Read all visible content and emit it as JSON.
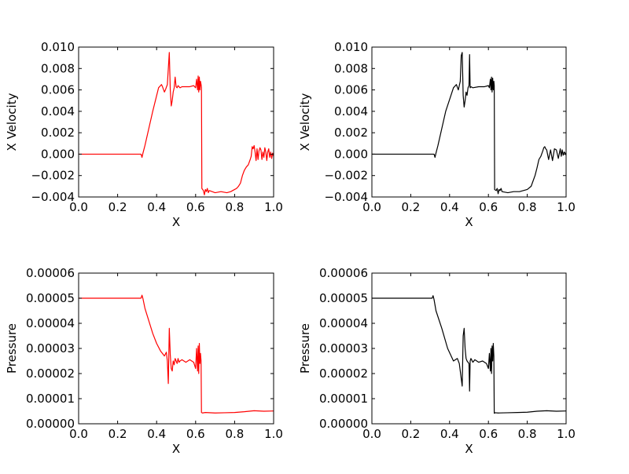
{
  "figure": {
    "panels": [
      {
        "id": "vel_red",
        "color": "#ff0000",
        "xlabel": "X",
        "ylabel": "X Velocity"
      },
      {
        "id": "vel_black",
        "color": "#000000",
        "xlabel": "X",
        "ylabel": "X Velocity"
      },
      {
        "id": "pres_red",
        "color": "#ff0000",
        "xlabel": "X",
        "ylabel": "Pressure"
      },
      {
        "id": "pres_black",
        "color": "#000000",
        "xlabel": "X",
        "ylabel": "Pressure"
      }
    ]
  },
  "chart_data": [
    {
      "type": "line",
      "title": "",
      "xlabel": "X",
      "ylabel": "X Velocity",
      "xlim": [
        0.0,
        1.0
      ],
      "ylim": [
        -0.004,
        0.01
      ],
      "xticks": [
        "0.0",
        "0.2",
        "0.4",
        "0.6",
        "0.8",
        "1.0"
      ],
      "yticks": [
        "−0.004",
        "−0.002",
        "0.000",
        "0.002",
        "0.004",
        "0.006",
        "0.008",
        "0.010"
      ],
      "grid": false,
      "series": [
        {
          "color": "#ff0000",
          "x": [
            0.0,
            0.32,
            0.325,
            0.33,
            0.34,
            0.38,
            0.41,
            0.425,
            0.43,
            0.44,
            0.445,
            0.455,
            0.465,
            0.47,
            0.475,
            0.48,
            0.485,
            0.49,
            0.495,
            0.5,
            0.505,
            0.51,
            0.515,
            0.52,
            0.53,
            0.55,
            0.57,
            0.59,
            0.6,
            0.605,
            0.61,
            0.613,
            0.616,
            0.619,
            0.622,
            0.625,
            0.628,
            0.63,
            0.632,
            0.64,
            0.645,
            0.65,
            0.655,
            0.66,
            0.665,
            0.67,
            0.7,
            0.73,
            0.76,
            0.78,
            0.79,
            0.8,
            0.81,
            0.82,
            0.83,
            0.84,
            0.85,
            0.86,
            0.87,
            0.88,
            0.885,
            0.89,
            0.895,
            0.9,
            0.905,
            0.91,
            0.915,
            0.92,
            0.925,
            0.93,
            0.935,
            0.94,
            0.945,
            0.95,
            0.955,
            0.96,
            0.965,
            0.97,
            0.975,
            0.98,
            0.985,
            0.99,
            0.995,
            1.0
          ],
          "y": [
            0.0,
            0.0,
            -0.0003,
            0.0001,
            0.0008,
            0.004,
            0.0062,
            0.0065,
            0.0063,
            0.0058,
            0.006,
            0.0065,
            0.0095,
            0.006,
            0.0045,
            0.005,
            0.0058,
            0.0062,
            0.0072,
            0.0063,
            0.0062,
            0.0064,
            0.0063,
            0.0062,
            0.0063,
            0.0063,
            0.0063,
            0.0064,
            0.0062,
            0.007,
            0.006,
            0.0073,
            0.0058,
            0.0072,
            0.006,
            0.0068,
            0.0065,
            0.0062,
            -0.0032,
            -0.0034,
            -0.0038,
            -0.0033,
            -0.0035,
            -0.0032,
            -0.0036,
            -0.0034,
            -0.0036,
            -0.0035,
            -0.0036,
            -0.0035,
            -0.0034,
            -0.0033,
            -0.0032,
            -0.003,
            -0.0027,
            -0.002,
            -0.0015,
            -0.0012,
            -0.001,
            -0.0005,
            -0.0002,
            0.0007,
            0.0005,
            0.0008,
            0.0002,
            -0.0006,
            0.0005,
            -0.0005,
            0.0003,
            0.0006,
            0.0004,
            -0.0005,
            0.0002,
            -0.0003,
            0.0006,
            0.0002,
            -0.0006,
            0.0002,
            0.0005,
            -0.0003,
            0.0002,
            -0.0004,
            0.0001,
            -0.0002
          ]
        }
      ]
    },
    {
      "type": "line",
      "title": "",
      "xlabel": "X",
      "ylabel": "X Velocity",
      "xlim": [
        0.0,
        1.0
      ],
      "ylim": [
        -0.004,
        0.01
      ],
      "xticks": [
        "0.0",
        "0.2",
        "0.4",
        "0.6",
        "0.8",
        "1.0"
      ],
      "yticks": [
        "−0.004",
        "−0.002",
        "0.000",
        "0.002",
        "0.004",
        "0.006",
        "0.008",
        "0.010"
      ],
      "grid": false,
      "series": [
        {
          "color": "#000000",
          "x": [
            0.0,
            0.32,
            0.325,
            0.33,
            0.34,
            0.38,
            0.42,
            0.435,
            0.445,
            0.455,
            0.46,
            0.465,
            0.47,
            0.475,
            0.48,
            0.485,
            0.49,
            0.495,
            0.5,
            0.503,
            0.506,
            0.51,
            0.52,
            0.55,
            0.58,
            0.6,
            0.605,
            0.61,
            0.613,
            0.616,
            0.619,
            0.622,
            0.625,
            0.628,
            0.63,
            0.632,
            0.64,
            0.645,
            0.65,
            0.655,
            0.66,
            0.665,
            0.67,
            0.7,
            0.73,
            0.76,
            0.78,
            0.8,
            0.82,
            0.84,
            0.85,
            0.86,
            0.87,
            0.88,
            0.885,
            0.89,
            0.895,
            0.9,
            0.91,
            0.92,
            0.93,
            0.94,
            0.95,
            0.96,
            0.97,
            0.975,
            0.98,
            0.985,
            0.99,
            0.995,
            1.0
          ],
          "y": [
            0.0,
            0.0,
            -0.0003,
            0.0001,
            0.0008,
            0.004,
            0.0062,
            0.0065,
            0.006,
            0.0068,
            0.0092,
            0.0095,
            0.0055,
            0.0044,
            0.005,
            0.0058,
            0.0055,
            0.0062,
            0.0064,
            0.0093,
            0.0062,
            0.0063,
            0.0062,
            0.0063,
            0.0063,
            0.0064,
            0.0062,
            0.007,
            0.006,
            0.0072,
            0.0058,
            0.0071,
            0.006,
            0.0068,
            0.0064,
            -0.0033,
            -0.0034,
            -0.0032,
            -0.0037,
            -0.0033,
            -0.0034,
            -0.0032,
            -0.0035,
            -0.0036,
            -0.0035,
            -0.0035,
            -0.0034,
            -0.0033,
            -0.003,
            -0.002,
            -0.0013,
            -0.0005,
            -0.0002,
            0.0003,
            0.0006,
            0.0007,
            0.0005,
            0.0004,
            -0.0005,
            0.0004,
            -0.0006,
            0.0005,
            0.0004,
            -0.0004,
            0.0005,
            -0.0002,
            0.0004,
            -0.0001,
            0.0002,
            0.0001,
            -0.0001
          ]
        }
      ]
    },
    {
      "type": "line",
      "title": "",
      "xlabel": "X",
      "ylabel": "Pressure",
      "xlim": [
        0.0,
        1.0
      ],
      "ylim": [
        0.0,
        6e-05
      ],
      "xticks": [
        "0.0",
        "0.2",
        "0.4",
        "0.6",
        "0.8",
        "1.0"
      ],
      "yticks": [
        "0.00000",
        "0.00001",
        "0.00002",
        "0.00003",
        "0.00004",
        "0.00005",
        "0.00006"
      ],
      "grid": false,
      "series": [
        {
          "color": "#ff0000",
          "x": [
            0.0,
            0.32,
            0.325,
            0.33,
            0.34,
            0.36,
            0.38,
            0.4,
            0.42,
            0.44,
            0.45,
            0.455,
            0.46,
            0.465,
            0.47,
            0.475,
            0.48,
            0.485,
            0.49,
            0.495,
            0.5,
            0.505,
            0.51,
            0.515,
            0.52,
            0.53,
            0.55,
            0.57,
            0.59,
            0.6,
            0.605,
            0.61,
            0.613,
            0.616,
            0.619,
            0.622,
            0.625,
            0.628,
            0.63,
            0.635,
            0.65,
            0.7,
            0.75,
            0.8,
            0.85,
            0.9,
            0.95,
            1.0
          ],
          "y": [
            5e-05,
            5e-05,
            5.12e-05,
            4.98e-05,
            4.6e-05,
            4.1e-05,
            3.6e-05,
            3.2e-05,
            2.9e-05,
            2.7e-05,
            2.85e-05,
            2.5e-05,
            1.6e-05,
            3.8e-05,
            2.75e-05,
            2.2e-05,
            2.1e-05,
            2.5e-05,
            2.35e-05,
            2.6e-05,
            2.5e-05,
            2.4e-05,
            2.6e-05,
            2.45e-05,
            2.5e-05,
            2.55e-05,
            2.45e-05,
            2.55e-05,
            2.45e-05,
            2.2e-05,
            3e-05,
            2.1e-05,
            3.1e-05,
            2e-05,
            3.2e-05,
            2.4e-05,
            2.8e-05,
            2.5e-05,
            4.5e-06,
            4.3e-06,
            4.5e-06,
            4.3e-06,
            4.4e-06,
            4.5e-06,
            4.8e-06,
            5.2e-06,
            5e-06,
            5.1e-06
          ]
        }
      ]
    },
    {
      "type": "line",
      "title": "",
      "xlabel": "X",
      "ylabel": "Pressure",
      "xlim": [
        0.0,
        1.0
      ],
      "ylim": [
        0.0,
        6e-05
      ],
      "xticks": [
        "0.0",
        "0.2",
        "0.4",
        "0.6",
        "0.8",
        "1.0"
      ],
      "yticks": [
        "0.00000",
        "0.00001",
        "0.00002",
        "0.00003",
        "0.00004",
        "0.00005",
        "0.00006"
      ],
      "grid": false,
      "series": [
        {
          "color": "#000000",
          "x": [
            0.0,
            0.31,
            0.315,
            0.32,
            0.33,
            0.36,
            0.39,
            0.42,
            0.44,
            0.45,
            0.46,
            0.465,
            0.47,
            0.475,
            0.48,
            0.485,
            0.49,
            0.495,
            0.5,
            0.503,
            0.506,
            0.51,
            0.52,
            0.53,
            0.55,
            0.57,
            0.59,
            0.6,
            0.605,
            0.61,
            0.613,
            0.616,
            0.619,
            0.622,
            0.625,
            0.628,
            0.63,
            0.635,
            0.65,
            0.7,
            0.75,
            0.8,
            0.85,
            0.9,
            0.95,
            1.0
          ],
          "y": [
            5e-05,
            5e-05,
            5.1e-05,
            4.95e-05,
            4.5e-05,
            3.8e-05,
            3e-05,
            2.5e-05,
            2.6e-05,
            2.4e-05,
            1.8e-05,
            1.5e-05,
            3.5e-05,
            3.8e-05,
            3e-05,
            2.6e-05,
            2.5e-05,
            2.45e-05,
            2.4e-05,
            1.3e-05,
            2.5e-05,
            2.6e-05,
            2.45e-05,
            2.55e-05,
            2.45e-05,
            2.5e-05,
            2.4e-05,
            2.2e-05,
            2.8e-05,
            2.1e-05,
            3e-05,
            2e-05,
            3.1e-05,
            2.5e-05,
            3.2e-05,
            2.7e-05,
            4.2e-06,
            4.4e-06,
            4.3e-06,
            4.4e-06,
            4.5e-06,
            4.6e-06,
            5e-06,
            5.2e-06,
            5e-06,
            5.1e-06
          ]
        }
      ]
    }
  ]
}
